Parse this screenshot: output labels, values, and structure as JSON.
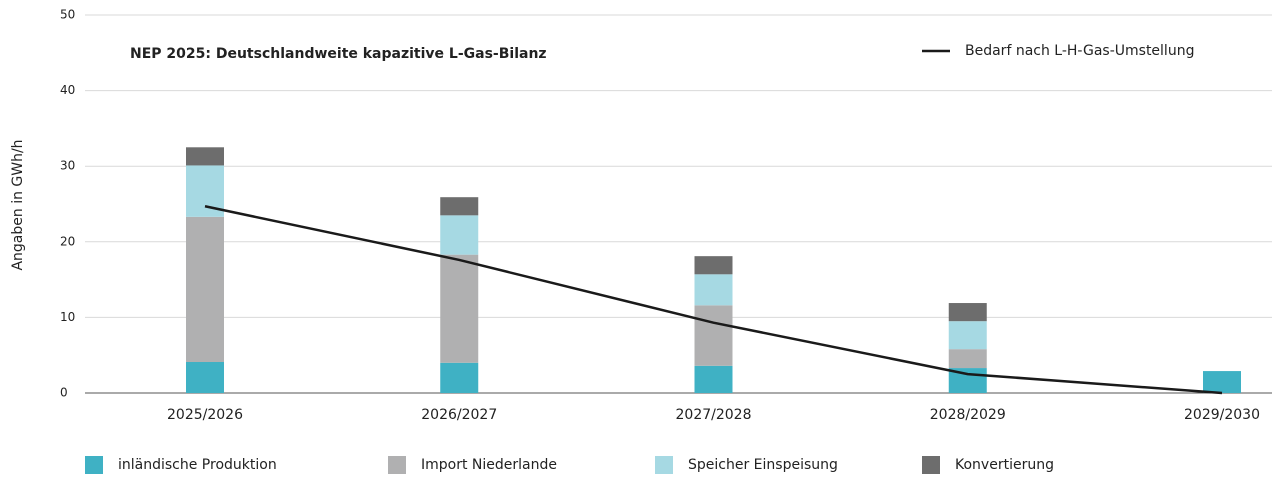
{
  "chart_data": {
    "type": "bar",
    "stacked": true,
    "title": "NEP 2025: Deutschlandweite kapazitive L-Gas-Bilanz",
    "y_label": "Angaben in GWh/h",
    "categories": [
      "2025/2026",
      "2026/2027",
      "2027/2028",
      "2028/2029",
      "2029/2030"
    ],
    "series": [
      {
        "name": "inländische Produktion",
        "color": "#3fb1c4",
        "values": [
          4.1,
          4.0,
          3.6,
          3.3,
          2.9
        ]
      },
      {
        "name": "Import Niederlande",
        "color": "#b0b0b1",
        "values": [
          19.2,
          14.3,
          8.0,
          2.5,
          0
        ]
      },
      {
        "name": "Speicher Einspeisung",
        "color": "#a6d9e3",
        "values": [
          6.8,
          5.2,
          4.1,
          3.7,
          0
        ]
      },
      {
        "name": "Konvertierung",
        "color": "#6d6d6d",
        "values": [
          2.4,
          2.4,
          2.4,
          2.4,
          0
        ]
      },
      {
        "name": "Bedarf nach L-H-Gas-Umstellung",
        "type": "line",
        "color": "#1a1a1a",
        "values": [
          24.7,
          17.6,
          9.3,
          2.5,
          0
        ]
      }
    ],
    "ylim": [
      0,
      50
    ],
    "yticks": [
      0,
      10,
      20,
      30,
      40,
      50
    ],
    "grid": true,
    "legend": "upper right"
  }
}
